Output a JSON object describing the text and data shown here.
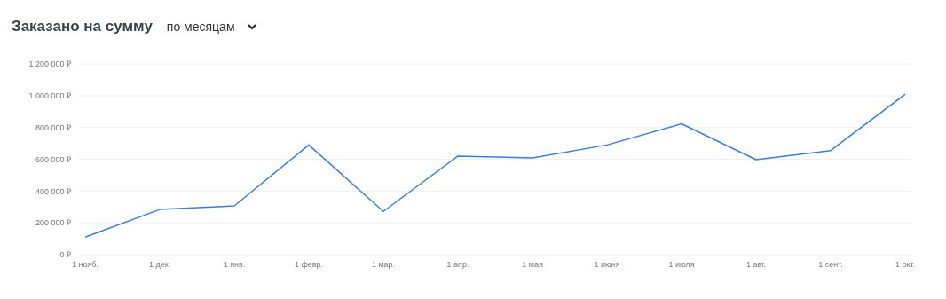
{
  "chart_data": {
    "type": "line",
    "title": "Заказано на сумму",
    "subtitle": "по месяцам",
    "categories": [
      "1 нояб.",
      "1 дек.",
      "1 янв.",
      "1 февр.",
      "1 мар.",
      "1 апр.",
      "1 мая",
      "1 июня",
      "1 июля",
      "1 авг.",
      "1 сент.",
      "1 окт."
    ],
    "values": [
      110000,
      284000,
      307000,
      690000,
      272000,
      620000,
      609000,
      690000,
      823000,
      597000,
      655000,
      1009000
    ],
    "color": "#3b7ddd",
    "ylim": [
      0,
      1200000
    ],
    "yticks": [
      {
        "value": 0,
        "label": "0 ₽"
      },
      {
        "value": 200000,
        "label": "200 000 ₽"
      },
      {
        "value": 400000,
        "label": "400 000 ₽"
      },
      {
        "value": 600000,
        "label": "600 000 ₽"
      },
      {
        "value": 800000,
        "label": "800 000 ₽"
      },
      {
        "value": 1000000,
        "label": "1 000 000 ₽"
      },
      {
        "value": 1200000,
        "label": "1 200 000 ₽"
      }
    ],
    "grid": "y",
    "marker": "none",
    "line_style": "solid",
    "legend": false
  }
}
